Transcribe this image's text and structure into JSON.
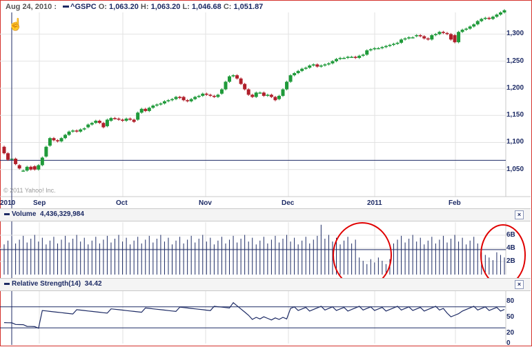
{
  "header": {
    "date": "Aug 24, 2010 :",
    "symbol": "^GSPC",
    "open_label": "O:",
    "open": "1,063.20",
    "high_label": "H:",
    "high": "1,063.20",
    "low_label": "L:",
    "low": "1,046.68",
    "close_label": "C:",
    "close": "1,051.87"
  },
  "copyright": "© 2011 Yahoo! Inc.",
  "colors": {
    "up": "#1f9a3a",
    "down": "#b01f2b",
    "line": "#1c2a64",
    "annotation": "#e00000"
  },
  "cursor_icon": "hand-cursor-icon",
  "chart_data": [
    {
      "type": "candlestick",
      "x_ticks": [
        "2010",
        "Sep",
        "Oct",
        "Nov",
        "Dec",
        "2011",
        "Feb"
      ],
      "y_ticks": [
        "1,050",
        "1,100",
        "1,150",
        "1,200",
        "1,250",
        "1,300"
      ],
      "ylim": [
        1000,
        1340
      ],
      "grid": true,
      "reference_line": 1067,
      "close": [
        1080,
        1068,
        1070,
        1060,
        1052,
        1048,
        1055,
        1050,
        1050,
        1058,
        1072,
        1092,
        1108,
        1104,
        1102,
        1108,
        1114,
        1120,
        1122,
        1120,
        1124,
        1126,
        1133,
        1136,
        1140,
        1136,
        1128,
        1142,
        1145,
        1144,
        1142,
        1140,
        1144,
        1142,
        1138,
        1155,
        1162,
        1158,
        1164,
        1168,
        1170,
        1172,
        1176,
        1178,
        1180,
        1184,
        1182,
        1178,
        1176,
        1180,
        1184,
        1186,
        1190,
        1188,
        1186,
        1184,
        1188,
        1198,
        1212,
        1222,
        1224,
        1218,
        1208,
        1198,
        1188,
        1184,
        1192,
        1192,
        1186,
        1188,
        1184,
        1178,
        1186,
        1198,
        1212,
        1224,
        1228,
        1232,
        1236,
        1238,
        1242,
        1244,
        1240,
        1242,
        1244,
        1246,
        1250,
        1254,
        1256,
        1256,
        1258,
        1258,
        1256,
        1260,
        1262,
        1270,
        1272,
        1274,
        1274,
        1276,
        1278,
        1280,
        1282,
        1284,
        1290,
        1292,
        1294,
        1294,
        1298,
        1296,
        1292,
        1290,
        1298,
        1300,
        1304,
        1302,
        1300,
        1290,
        1285,
        1304,
        1308,
        1310,
        1314,
        1318,
        1324,
        1328,
        1330,
        1328,
        1332,
        1336,
        1340,
        1344
      ],
      "open": [
        1092,
        1080,
        1068,
        1070,
        1058,
        1048,
        1048,
        1055,
        1056,
        1050,
        1058,
        1074,
        1094,
        1108,
        1104,
        1102,
        1108,
        1114,
        1120,
        1122,
        1120,
        1124,
        1128,
        1133,
        1136,
        1140,
        1136,
        1130,
        1140,
        1145,
        1144,
        1142,
        1140,
        1144,
        1142,
        1142,
        1155,
        1162,
        1158,
        1164,
        1168,
        1170,
        1172,
        1176,
        1178,
        1180,
        1184,
        1184,
        1178,
        1176,
        1180,
        1184,
        1186,
        1190,
        1188,
        1186,
        1184,
        1190,
        1198,
        1212,
        1222,
        1224,
        1218,
        1208,
        1198,
        1188,
        1184,
        1192,
        1192,
        1186,
        1188,
        1184,
        1180,
        1186,
        1198,
        1212,
        1224,
        1228,
        1232,
        1236,
        1238,
        1242,
        1244,
        1240,
        1242,
        1244,
        1246,
        1250,
        1254,
        1256,
        1256,
        1258,
        1258,
        1256,
        1260,
        1262,
        1270,
        1272,
        1274,
        1274,
        1276,
        1278,
        1280,
        1282,
        1284,
        1290,
        1292,
        1294,
        1296,
        1298,
        1296,
        1292,
        1290,
        1298,
        1300,
        1304,
        1302,
        1300,
        1298,
        1285,
        1304,
        1308,
        1310,
        1314,
        1318,
        1324,
        1328,
        1330,
        1328,
        1332,
        1336,
        1340
      ],
      "volume_ylim": [
        0,
        8
      ],
      "volume_y_ticks": [
        "2B",
        "4B",
        "6B"
      ],
      "volume_label": "Volume",
      "volume_value": "4,436,329,984",
      "rsi_label": "Relative Strength(14)",
      "rsi_value": "34.42",
      "rsi_ylim": [
        0,
        100
      ],
      "rsi_y_ticks": [
        "0",
        "20",
        "50",
        "80"
      ],
      "rsi_reference_lines": [
        70,
        30
      ],
      "annotations": [
        {
          "type": "ellipse",
          "color": "red"
        },
        {
          "type": "ellipse",
          "color": "red"
        }
      ]
    }
  ]
}
